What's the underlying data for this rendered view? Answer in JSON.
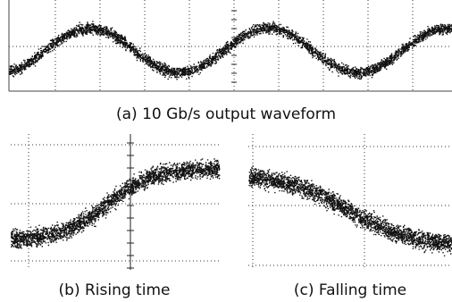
{
  "panels": [
    {
      "caption": "(a) 10 Gb/s output waveform"
    },
    {
      "caption": "(b) Rising time"
    },
    {
      "caption": "(c) Falling time"
    }
  ]
}
